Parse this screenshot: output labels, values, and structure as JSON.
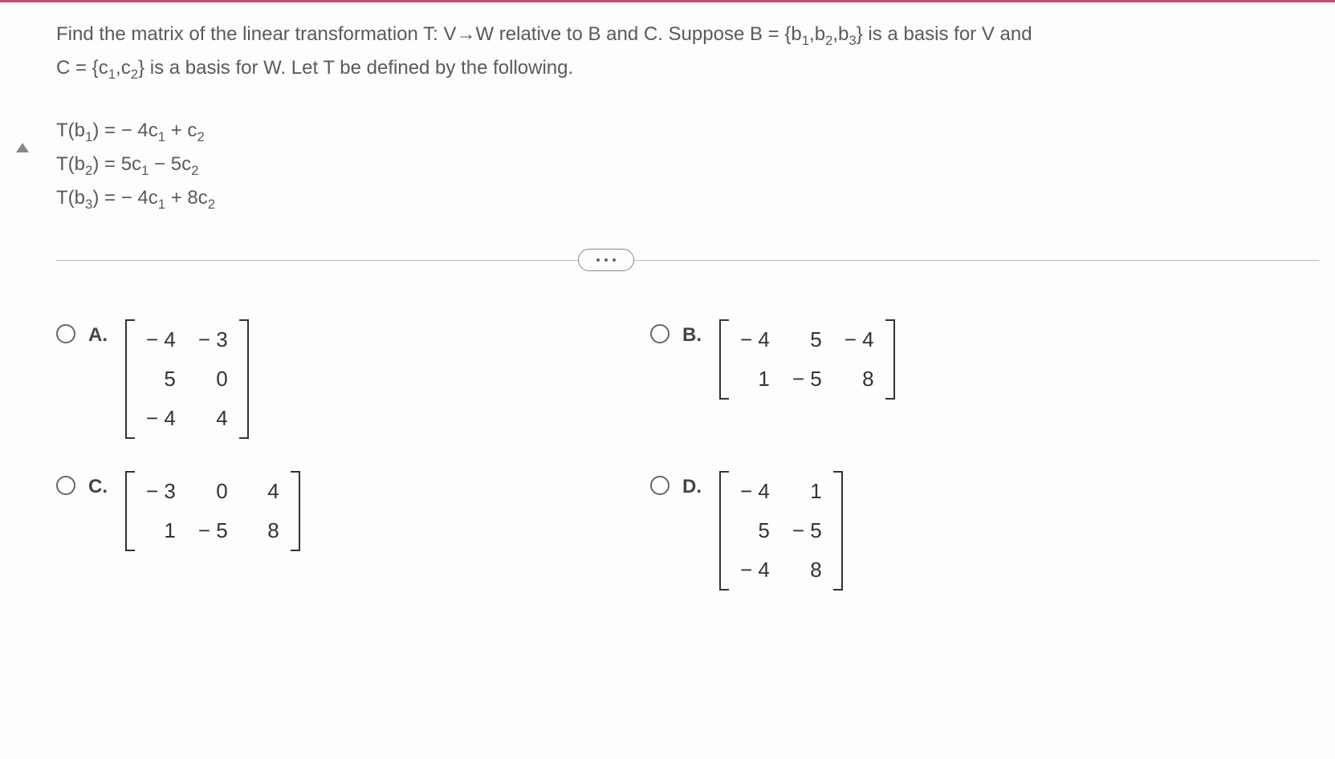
{
  "question": {
    "line1_pre": "Find the matrix of the linear transformation T: V",
    "arrow": "→",
    "line1_post": "W relative to B and C. Suppose B = {b",
    "line1_b1": "1",
    "line1_mid1": ",b",
    "line1_b2": "2",
    "line1_mid2": ",b",
    "line1_b3": "3",
    "line1_end": "} is a basis for V and",
    "line2_pre": "C = {c",
    "line2_c1": "1",
    "line2_mid": ",c",
    "line2_c2": "2",
    "line2_end": "} is a basis for W. Let T be defined by the following."
  },
  "equations": {
    "e1": {
      "lhs_pre": "T(b",
      "lhs_sub": "1",
      "lhs_post": ") = ",
      "t1": "− 4c",
      "t1sub": "1",
      "op": " + c",
      "t2sub": "2"
    },
    "e2": {
      "lhs_pre": "T(b",
      "lhs_sub": "2",
      "lhs_post": ") = ",
      "t1": "5c",
      "t1sub": "1",
      "op": " − 5c",
      "t2sub": "2"
    },
    "e3": {
      "lhs_pre": "T(b",
      "lhs_sub": "3",
      "lhs_post": ") = ",
      "t1": "− 4c",
      "t1sub": "1",
      "op": " + 8c",
      "t2sub": "2"
    }
  },
  "options": {
    "a": {
      "label": "A.",
      "rows": 3,
      "cols": 2,
      "cells": [
        "− 4",
        "− 3",
        "5",
        "0",
        "− 4",
        "4"
      ]
    },
    "b": {
      "label": "B.",
      "rows": 2,
      "cols": 3,
      "cells": [
        "− 4",
        "5",
        "− 4",
        "1",
        "− 5",
        "8"
      ]
    },
    "c": {
      "label": "C.",
      "rows": 2,
      "cols": 3,
      "cells": [
        "− 3",
        "0",
        "4",
        "1",
        "− 5",
        "8"
      ]
    },
    "d": {
      "label": "D.",
      "rows": 3,
      "cols": 2,
      "cells": [
        "− 4",
        "1",
        "5",
        "− 5",
        "− 4",
        "8"
      ]
    }
  },
  "colors": {
    "text": "#5a5a5a",
    "dark": "#333333",
    "border_top": "#c04a7a",
    "background": "#fdfdfd",
    "radio_border": "#666666",
    "divider": "#bbbbbb"
  },
  "font_sizes": {
    "body": 24,
    "matrix": 26
  }
}
